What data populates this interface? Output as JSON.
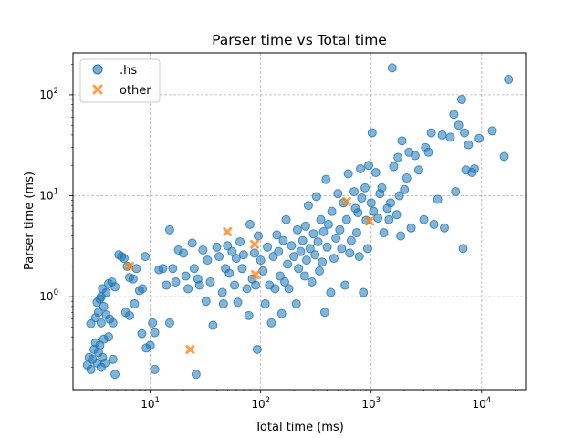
{
  "chart_data": {
    "type": "scatter",
    "title": "Parser time vs Total time",
    "xlabel": "Total time (ms)",
    "ylabel": "Parser time (ms)",
    "xscale": "log",
    "yscale": "log",
    "xlim": [
      2.0,
      25000
    ],
    "ylim": [
      0.12,
      260
    ],
    "grid": true,
    "legend_position": "top-left",
    "x_ticks": [
      {
        "value": 10,
        "base": "10",
        "exp": "1"
      },
      {
        "value": 100,
        "base": "10",
        "exp": "2"
      },
      {
        "value": 1000,
        "base": "10",
        "exp": "3"
      },
      {
        "value": 10000,
        "base": "10",
        "exp": "4"
      }
    ],
    "y_ticks": [
      {
        "value": 1,
        "base": "10",
        "exp": "0"
      },
      {
        "value": 10,
        "base": "10",
        "exp": "1"
      },
      {
        "value": 100,
        "base": "10",
        "exp": "2"
      }
    ],
    "series": [
      {
        "name": ".hs",
        "marker": "circle",
        "color": "#1f77b4",
        "points": [
          [
            2.7,
            0.21
          ],
          [
            2.8,
            0.25
          ],
          [
            2.9,
            0.19
          ],
          [
            3.0,
            0.24
          ],
          [
            3.1,
            0.3
          ],
          [
            3.2,
            0.35
          ],
          [
            3.3,
            0.22
          ],
          [
            3.4,
            0.28
          ],
          [
            3.5,
            0.33
          ],
          [
            3.6,
            0.2
          ],
          [
            3.7,
            0.25
          ],
          [
            3.8,
            0.38
          ],
          [
            3.9,
            0.22
          ],
          [
            4.2,
            0.4
          ],
          [
            4.6,
            0.24
          ],
          [
            4.8,
            0.17
          ],
          [
            2.9,
            0.54
          ],
          [
            3.2,
            0.62
          ],
          [
            3.4,
            0.7
          ],
          [
            3.6,
            0.55
          ],
          [
            3.8,
            0.8
          ],
          [
            4.0,
            0.66
          ],
          [
            4.3,
            0.6
          ],
          [
            4.6,
            0.55
          ],
          [
            3.3,
            0.88
          ],
          [
            3.5,
            0.95
          ],
          [
            3.7,
            1.2
          ],
          [
            4.0,
            1.1
          ],
          [
            4.2,
            1.35
          ],
          [
            4.5,
            1.4
          ],
          [
            4.8,
            1.25
          ],
          [
            3.6,
            1.0
          ],
          [
            5.2,
            2.6
          ],
          [
            5.5,
            2.5
          ],
          [
            5.8,
            2.4
          ],
          [
            6.2,
            2.0
          ],
          [
            6.5,
            1.55
          ],
          [
            7.0,
            1.5
          ],
          [
            7.5,
            1.9
          ],
          [
            8.0,
            1.15
          ],
          [
            8.5,
            1.2
          ],
          [
            9.0,
            2.5
          ],
          [
            6.0,
            0.7
          ],
          [
            6.5,
            0.65
          ],
          [
            7.2,
            0.85
          ],
          [
            8.4,
            0.43
          ],
          [
            9.2,
            0.31
          ],
          [
            10.0,
            0.33
          ],
          [
            10.5,
            0.55
          ],
          [
            11,
            0.44
          ],
          [
            11,
            0.19
          ],
          [
            12,
            1.85
          ],
          [
            13,
            1.9
          ],
          [
            14,
            1.3
          ],
          [
            15,
            0.55
          ],
          [
            15,
            4.6
          ],
          [
            16,
            1.9
          ],
          [
            17,
            1.4
          ],
          [
            18,
            2.9
          ],
          [
            20,
            2.7
          ],
          [
            21,
            1.6
          ],
          [
            22,
            1.2
          ],
          [
            24,
            3.4
          ],
          [
            25,
            1.9
          ],
          [
            26,
            0.17
          ],
          [
            27,
            1.5
          ],
          [
            28,
            1.3
          ],
          [
            30,
            2.9
          ],
          [
            32,
            0.9
          ],
          [
            33,
            2.3
          ],
          [
            35,
            1.4
          ],
          [
            37,
            0.52
          ],
          [
            40,
            3.1
          ],
          [
            42,
            2.5
          ],
          [
            45,
            1.1
          ],
          [
            46,
            0.85
          ],
          [
            48,
            1.9
          ],
          [
            50,
            3.2
          ],
          [
            52,
            1.7
          ],
          [
            55,
            2.8
          ],
          [
            58,
            1.3
          ],
          [
            60,
            2.4
          ],
          [
            62,
            0.88
          ],
          [
            65,
            3.5
          ],
          [
            68,
            1.9
          ],
          [
            70,
            2.6
          ],
          [
            75,
            1.2
          ],
          [
            78,
            0.65
          ],
          [
            80,
            5.2
          ],
          [
            84,
            1.5
          ],
          [
            88,
            2.7
          ],
          [
            90,
            1.3
          ],
          [
            93,
            0.3
          ],
          [
            95,
            4.0
          ],
          [
            100,
            2.3
          ],
          [
            105,
            1.8
          ],
          [
            110,
            0.85
          ],
          [
            115,
            3.1
          ],
          [
            120,
            1.3
          ],
          [
            125,
            0.55
          ],
          [
            130,
            2.5
          ],
          [
            135,
            1.2
          ],
          [
            140,
            4.1
          ],
          [
            145,
            2.8
          ],
          [
            150,
            1.6
          ],
          [
            155,
            0.68
          ],
          [
            160,
            3.6
          ],
          [
            165,
            1.4
          ],
          [
            170,
            5.8
          ],
          [
            175,
            2.1
          ],
          [
            180,
            1.2
          ],
          [
            190,
            3.2
          ],
          [
            200,
            2.5
          ],
          [
            210,
            0.85
          ],
          [
            215,
            4.6
          ],
          [
            220,
            1.9
          ],
          [
            230,
            2.8
          ],
          [
            240,
            3.6
          ],
          [
            250,
            1.6
          ],
          [
            255,
            5.0
          ],
          [
            260,
            2.3
          ],
          [
            270,
            8.0
          ],
          [
            280,
            3.0
          ],
          [
            290,
            1.4
          ],
          [
            300,
            4.2
          ],
          [
            310,
            2.6
          ],
          [
            320,
            9.8
          ],
          [
            330,
            3.5
          ],
          [
            340,
            1.8
          ],
          [
            350,
            5.8
          ],
          [
            360,
            2.2
          ],
          [
            370,
            4.4
          ],
          [
            380,
            0.7
          ],
          [
            390,
            14.5
          ],
          [
            400,
            3.1
          ],
          [
            410,
            5.2
          ],
          [
            430,
            1.1
          ],
          [
            440,
            7.0
          ],
          [
            460,
            2.4
          ],
          [
            480,
            3.8
          ],
          [
            500,
            10.5
          ],
          [
            520,
            4.6
          ],
          [
            540,
            3.0
          ],
          [
            560,
            8.5
          ],
          [
            580,
            1.3
          ],
          [
            600,
            5.8
          ],
          [
            620,
            16.5
          ],
          [
            640,
            2.7
          ],
          [
            660,
            3.6
          ],
          [
            700,
            11.0
          ],
          [
            720,
            7.5
          ],
          [
            740,
            4.3
          ],
          [
            760,
            6.8
          ],
          [
            780,
            2.5
          ],
          [
            800,
            18.5
          ],
          [
            820,
            9.5
          ],
          [
            850,
            1.1
          ],
          [
            880,
            12.0
          ],
          [
            900,
            5.7
          ],
          [
            930,
            3.0
          ],
          [
            950,
            20.0
          ],
          [
            1000,
            8.5
          ],
          [
            1020,
            42.0
          ],
          [
            1050,
            7.0
          ],
          [
            1100,
            17.0
          ],
          [
            1150,
            6.0
          ],
          [
            1200,
            10.5
          ],
          [
            1250,
            12.0
          ],
          [
            1300,
            4.3
          ],
          [
            1400,
            7.5
          ],
          [
            1450,
            5.8
          ],
          [
            1500,
            8.5
          ],
          [
            1550,
            185.0
          ],
          [
            1600,
            19.5
          ],
          [
            1700,
            6.5
          ],
          [
            1750,
            24.0
          ],
          [
            1800,
            10.0
          ],
          [
            1850,
            4.0
          ],
          [
            1900,
            35.0
          ],
          [
            2000,
            11.5
          ],
          [
            2100,
            15.0
          ],
          [
            2200,
            27.0
          ],
          [
            2300,
            4.8
          ],
          [
            2500,
            25.0
          ],
          [
            2700,
            18.0
          ],
          [
            3000,
            5.8
          ],
          [
            3100,
            30.0
          ],
          [
            3300,
            27.0
          ],
          [
            3500,
            42.0
          ],
          [
            3700,
            5.2
          ],
          [
            4000,
            9.2
          ],
          [
            4400,
            40.0
          ],
          [
            4600,
            4.8
          ],
          [
            5200,
            38.0
          ],
          [
            5600,
            64.0
          ],
          [
            5800,
            11.0
          ],
          [
            6200,
            50.0
          ],
          [
            6600,
            90.0
          ],
          [
            6800,
            3.0
          ],
          [
            7000,
            42.0
          ],
          [
            7200,
            18.0
          ],
          [
            7600,
            32.0
          ],
          [
            8200,
            17.0
          ],
          [
            8600,
            18.5
          ],
          [
            9500,
            37.0
          ],
          [
            12500,
            44.0
          ],
          [
            16000,
            24.5
          ],
          [
            17500,
            142.0
          ]
        ]
      },
      {
        "name": "other",
        "marker": "x",
        "color": "#ff7f0e",
        "points": [
          [
            6.5,
            2.0
          ],
          [
            23,
            0.3
          ],
          [
            50,
            4.4
          ],
          [
            88,
            3.3
          ],
          [
            90,
            1.65
          ],
          [
            600,
            8.8
          ],
          [
            970,
            5.6
          ]
        ]
      }
    ]
  }
}
